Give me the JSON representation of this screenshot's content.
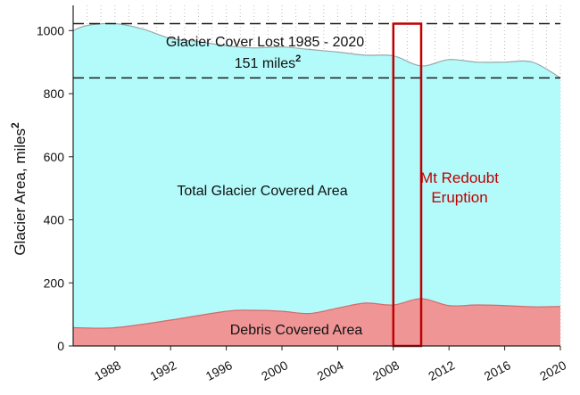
{
  "chart_data": {
    "type": "area",
    "ylabel": "Glacier Area, miles",
    "ylabel_sup": "2",
    "xlim": [
      1985,
      2020
    ],
    "ylim": [
      0,
      1080
    ],
    "x_ticks": [
      1988,
      1992,
      1996,
      2000,
      2004,
      2008,
      2012,
      2016,
      2020
    ],
    "y_ticks": [
      0,
      200,
      400,
      600,
      800,
      1000
    ],
    "grid": "vertical dotted",
    "series": [
      {
        "name": "Total Glacier Covered Area",
        "color": "#b3fafa",
        "stroke": "#9aa8a8",
        "x": [
          1985,
          1986,
          1988,
          1990,
          1992,
          1994,
          1996,
          1998,
          2000,
          2002,
          2004,
          2006,
          2008,
          2010,
          2012,
          2014,
          2016,
          2018,
          2020
        ],
        "values": [
          1000,
          1016,
          1022,
          1005,
          975,
          965,
          952,
          945,
          948,
          940,
          932,
          922,
          920,
          888,
          908,
          900,
          900,
          900,
          850
        ]
      },
      {
        "name": "Debris Covered Area",
        "color": "#f09595",
        "stroke": "#d66a6a",
        "x": [
          1985,
          1988,
          1992,
          1996,
          1998,
          2000,
          2002,
          2004,
          2006,
          2008,
          2010,
          2012,
          2014,
          2016,
          2018,
          2020
        ],
        "values": [
          58,
          58,
          82,
          110,
          113,
          110,
          103,
          120,
          136,
          130,
          150,
          128,
          130,
          128,
          124,
          125
        ]
      }
    ],
    "reference_lines": [
      {
        "y": 1022,
        "style": "dashed"
      },
      {
        "y": 850,
        "style": "dashed"
      }
    ],
    "highlight_box": {
      "x": [
        2008,
        2010
      ],
      "y": [
        0,
        1022
      ],
      "color": "#c00000"
    },
    "annotations": {
      "lost_line1": "Glacier Cover Lost 1985 - 2020",
      "lost_line2": "151 miles",
      "lost_sup": "2",
      "total_label": "Total Glacier Covered Area",
      "debris_label": "Debris Covered Area",
      "eruption_line1": "Mt Redoubt",
      "eruption_line2": "Eruption"
    }
  }
}
